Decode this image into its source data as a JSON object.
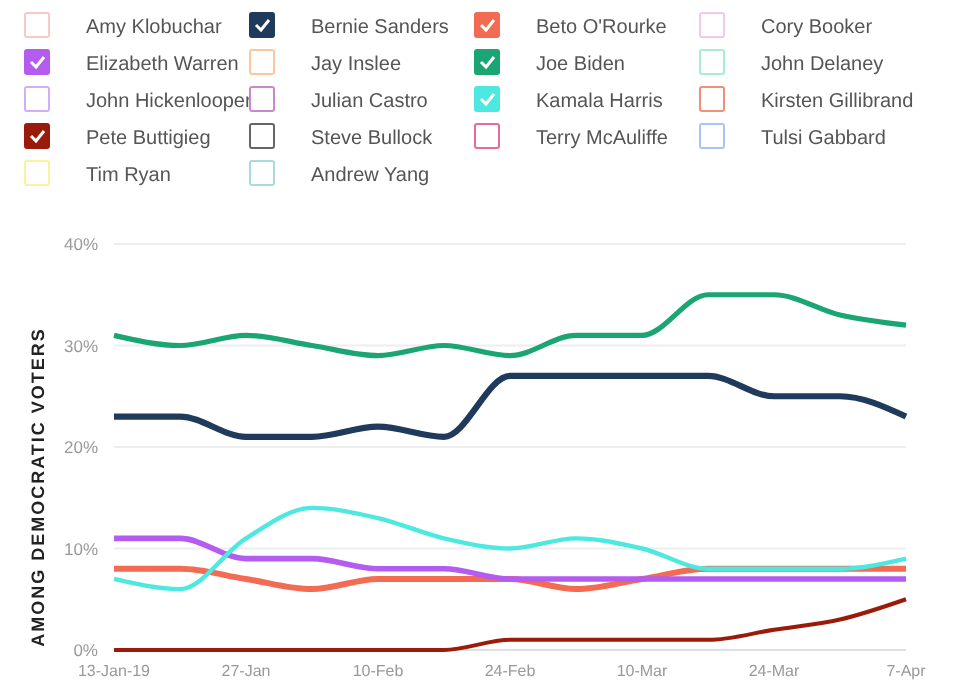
{
  "chart_data": {
    "type": "line",
    "ylabel": "AMONG DEMOCRATIC VOTERS",
    "x": [
      "2019-01-13",
      "2019-01-20",
      "2019-01-27",
      "2019-02-03",
      "2019-02-10",
      "2019-02-17",
      "2019-02-24",
      "2019-03-03",
      "2019-03-10",
      "2019-03-17",
      "2019-03-24",
      "2019-03-31",
      "2019-04-07"
    ],
    "xlim": [
      "2019-01-13",
      "2019-04-07"
    ],
    "xticks": [
      {
        "value": "2019-01-13",
        "label": "13-Jan-19"
      },
      {
        "value": "2019-01-27",
        "label": "27-Jan"
      },
      {
        "value": "2019-02-10",
        "label": "10-Feb"
      },
      {
        "value": "2019-02-24",
        "label": "24-Feb"
      },
      {
        "value": "2019-03-10",
        "label": "10-Mar"
      },
      {
        "value": "2019-03-24",
        "label": "24-Mar"
      },
      {
        "value": "2019-04-07",
        "label": "7-Apr"
      }
    ],
    "ylim": [
      0,
      40
    ],
    "yticks": [
      {
        "value": 0,
        "label": "0%"
      },
      {
        "value": 10,
        "label": "10%"
      },
      {
        "value": 20,
        "label": "20%"
      },
      {
        "value": 30,
        "label": "30%"
      },
      {
        "value": 40,
        "label": "40%"
      }
    ],
    "grid": "y",
    "legend": "top",
    "marker": "none",
    "series": [
      {
        "name": "Amy Klobuchar",
        "color": "#f8c9c0",
        "values": [
          null,
          null,
          null,
          null,
          null,
          null,
          null,
          null,
          null,
          null,
          null,
          null,
          null
        ]
      },
      {
        "name": "Bernie Sanders",
        "color": "#1f3a5a",
        "values": [
          23,
          23,
          21,
          21,
          22,
          21,
          27,
          27,
          27,
          27,
          25,
          25,
          23
        ]
      },
      {
        "name": "Beto O'Rourke",
        "color": "#f26b52",
        "values": [
          8,
          8,
          7,
          6,
          7,
          7,
          7,
          6,
          7,
          8,
          8,
          8,
          8
        ]
      },
      {
        "name": "Cory Booker",
        "color": "#f0c8f0",
        "values": [
          null,
          null,
          null,
          null,
          null,
          null,
          null,
          null,
          null,
          null,
          null,
          null,
          null
        ]
      },
      {
        "name": "Elizabeth Warren",
        "color": "#b55cf0",
        "values": [
          11,
          11,
          9,
          9,
          8,
          8,
          7,
          7,
          7,
          7,
          7,
          7,
          7
        ]
      },
      {
        "name": "Jay Inslee",
        "color": "#fcc79c",
        "values": [
          null,
          null,
          null,
          null,
          null,
          null,
          null,
          null,
          null,
          null,
          null,
          null,
          null
        ]
      },
      {
        "name": "Joe Biden",
        "color": "#1aa573",
        "values": [
          31,
          30,
          31,
          30,
          29,
          30,
          29,
          31,
          31,
          35,
          35,
          33,
          32
        ]
      },
      {
        "name": "John Delaney",
        "color": "#a8ecd6",
        "values": [
          null,
          null,
          null,
          null,
          null,
          null,
          null,
          null,
          null,
          null,
          null,
          null,
          null
        ]
      },
      {
        "name": "John Hickenlooper",
        "color": "#cfb0f8",
        "values": [
          null,
          null,
          null,
          null,
          null,
          null,
          null,
          null,
          null,
          null,
          null,
          null,
          null
        ]
      },
      {
        "name": "Julian Castro",
        "color": "#c889cc",
        "values": [
          null,
          null,
          null,
          null,
          null,
          null,
          null,
          null,
          null,
          null,
          null,
          null,
          null
        ]
      },
      {
        "name": "Kamala Harris",
        "color": "#4de8e0",
        "values": [
          7,
          6,
          11,
          14,
          13,
          11,
          10,
          11,
          10,
          8,
          8,
          8,
          9
        ]
      },
      {
        "name": "Kirsten Gillibrand",
        "color": "#f0907a",
        "values": [
          null,
          null,
          null,
          null,
          null,
          null,
          null,
          null,
          null,
          null,
          null,
          null,
          null
        ]
      },
      {
        "name": "Pete Buttigieg",
        "color": "#9b1b0a",
        "values": [
          0,
          0,
          0,
          0,
          0,
          0,
          1,
          1,
          1,
          1,
          2,
          3,
          5
        ]
      },
      {
        "name": "Steve Bullock",
        "color": "#666666",
        "values": [
          null,
          null,
          null,
          null,
          null,
          null,
          null,
          null,
          null,
          null,
          null,
          null,
          null
        ]
      },
      {
        "name": "Terry McAuliffe",
        "color": "#e86a9a",
        "values": [
          null,
          null,
          null,
          null,
          null,
          null,
          null,
          null,
          null,
          null,
          null,
          null,
          null
        ]
      },
      {
        "name": "Tulsi Gabbard",
        "color": "#a8c4f4",
        "values": [
          null,
          null,
          null,
          null,
          null,
          null,
          null,
          null,
          null,
          null,
          null,
          null,
          null
        ]
      },
      {
        "name": "Tim Ryan",
        "color": "#fdf0a0",
        "values": [
          null,
          null,
          null,
          null,
          null,
          null,
          null,
          null,
          null,
          null,
          null,
          null,
          null
        ]
      },
      {
        "name": "Andrew Yang",
        "color": "#a8dae0",
        "values": [
          null,
          null,
          null,
          null,
          null,
          null,
          null,
          null,
          null,
          null,
          null,
          null,
          null
        ]
      }
    ]
  }
}
